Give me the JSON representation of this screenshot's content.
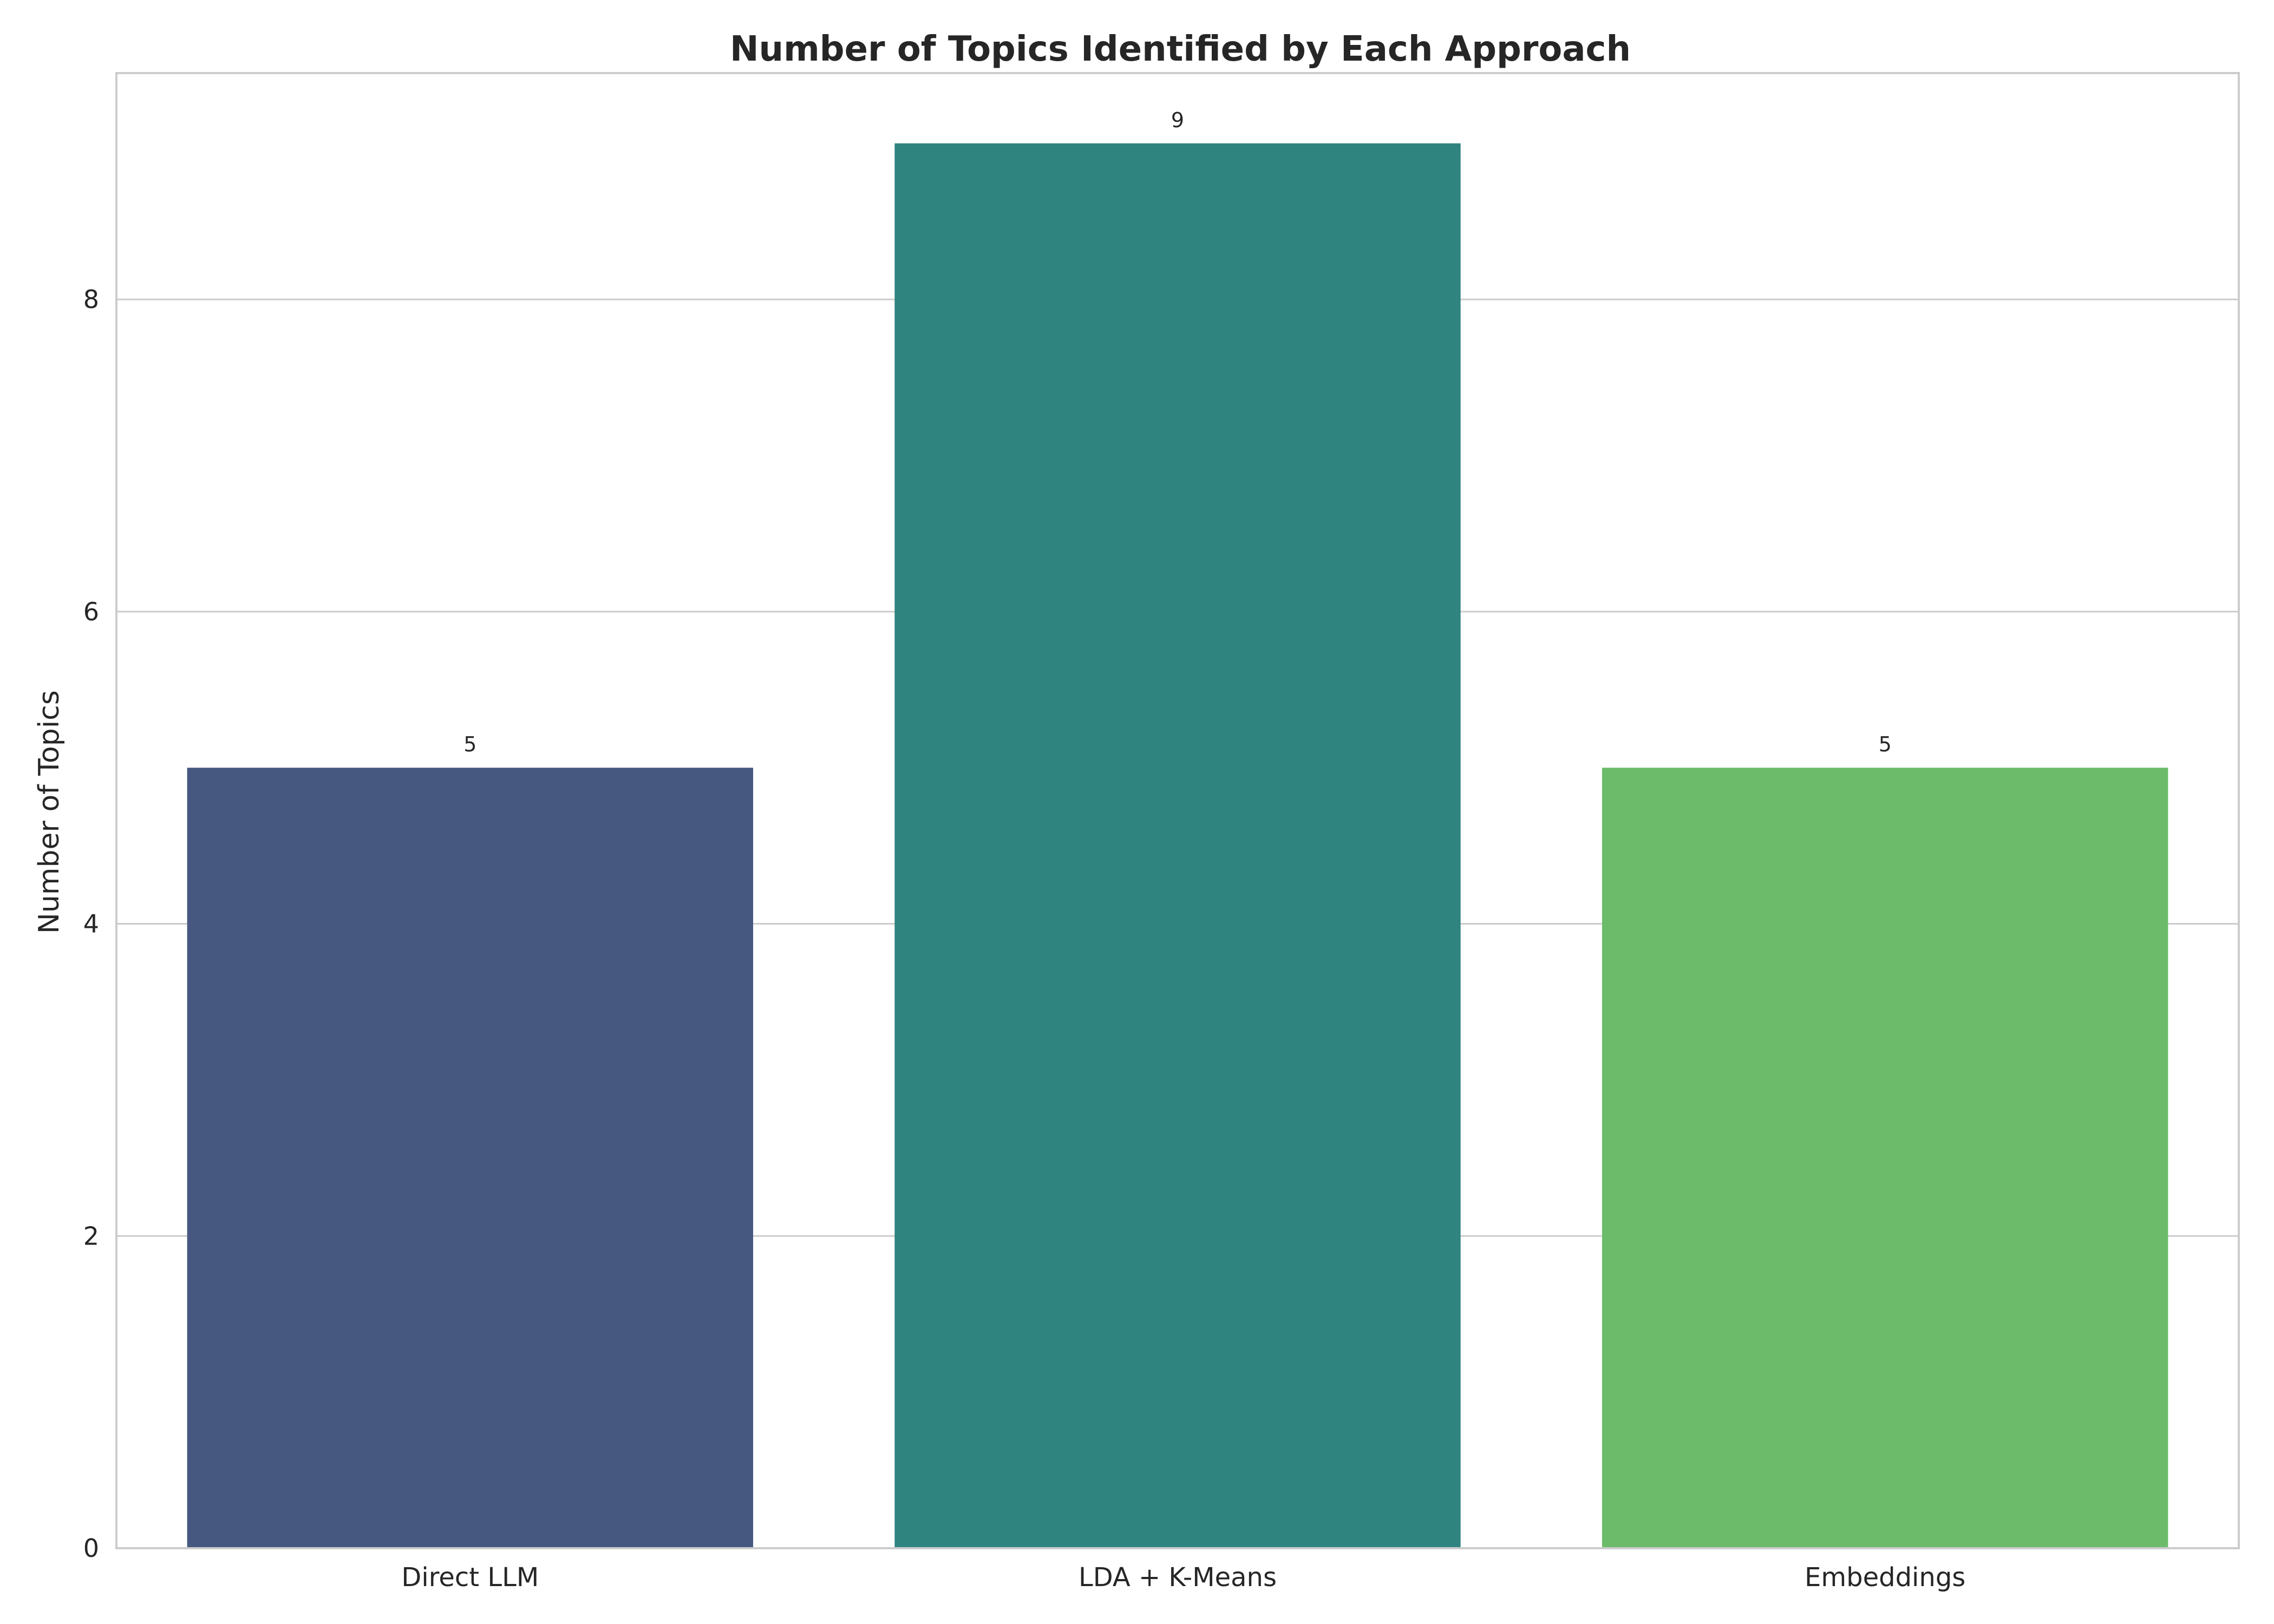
{
  "chart_data": {
    "type": "bar",
    "title": "Number of Topics Identified by Each Approach",
    "xlabel": "",
    "ylabel": "Number of Topics",
    "categories": [
      "Direct LLM",
      "LDA + K-Means",
      "Embeddings"
    ],
    "values": [
      5,
      9,
      5
    ],
    "data_labels": [
      "5",
      "9",
      "5"
    ],
    "colors": [
      "#46587f",
      "#2f847f",
      "#6bbb6b"
    ],
    "ylim": [
      0,
      9.45
    ],
    "yticks": [
      0,
      2,
      4,
      6,
      8
    ],
    "ytick_labels": [
      "0",
      "2",
      "4",
      "6",
      "8"
    ],
    "grid": "horizontal",
    "legend": "none"
  }
}
